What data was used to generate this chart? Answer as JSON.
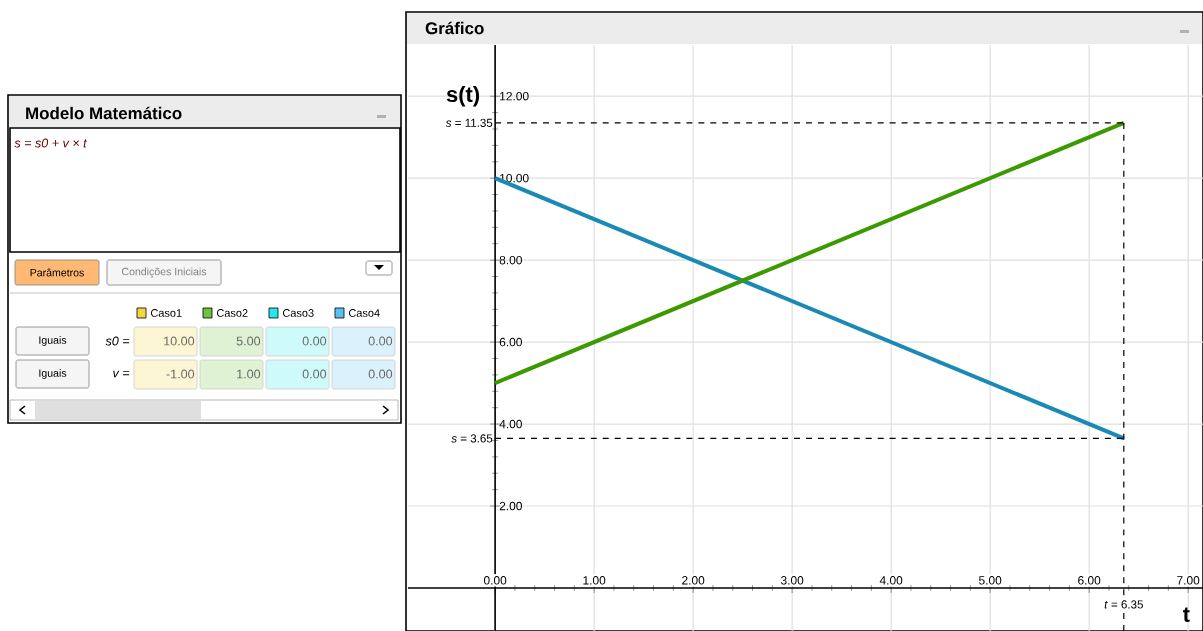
{
  "chart_data": [
    {
      "type": "other",
      "title": "Modelo Matemático",
      "colors": [
        "#f5d742",
        "#6fc23a",
        "#27e8e8",
        "#5bc0f0"
      ],
      "annotations": [
        "s = s0 + v × t",
        "Parâmetros",
        "Condições Iniciais",
        "Caso1",
        "Caso2",
        "Caso3",
        "Caso4",
        "Iguais",
        "s0 =",
        "10.00",
        "5.00",
        "0.00",
        "0.00",
        "Iguais",
        "v =",
        "-1.00",
        "1.00",
        "0.00",
        "0.00"
      ]
    },
    {
      "type": "line",
      "title": "Gráfico",
      "xlabel": "t",
      "ylabel": "s(t)",
      "x": [
        0,
        6.35
      ],
      "series": [
        {
          "color": "#1a8ab5",
          "values": [
            10,
            3.65
          ]
        },
        {
          "color": "#3c9a00",
          "values": [
            5,
            11.35
          ]
        }
      ],
      "xlim": [
        -0.88,
        7.15
      ],
      "ylim": [
        -1.05,
        13.25
      ],
      "xticks": [
        {
          "value": 0,
          "label": "0.00"
        },
        {
          "value": 1,
          "label": "1.00"
        },
        {
          "value": 2,
          "label": "2.00"
        },
        {
          "value": 3,
          "label": "3.00"
        },
        {
          "value": 4,
          "label": "4.00"
        },
        {
          "value": 5,
          "label": "5.00"
        },
        {
          "value": 6,
          "label": "6.00"
        },
        {
          "value": 7,
          "label": "7.00"
        }
      ],
      "yticks": [
        {
          "value": 2,
          "label": "2.00"
        },
        {
          "value": 4,
          "label": "4.00"
        },
        {
          "value": 6,
          "label": "6.00"
        },
        {
          "value": 8,
          "label": "8.00"
        },
        {
          "value": 10,
          "label": "10.00"
        },
        {
          "value": 12,
          "label": "12.00"
        }
      ],
      "grid": true,
      "ref_lines": [
        {
          "axis": "y",
          "value": 11.35,
          "label": "*s* = 11.35",
          "color": "#000000",
          "line_style": "dashed"
        },
        {
          "axis": "y",
          "value": 3.65,
          "label": "*s* = 3.65",
          "color": "#000000",
          "line_style": "dashed"
        },
        {
          "axis": "x",
          "value": 6.35,
          "label": "*t* = 6.35",
          "color": "#000000",
          "line_style": "dashed"
        }
      ]
    }
  ]
}
